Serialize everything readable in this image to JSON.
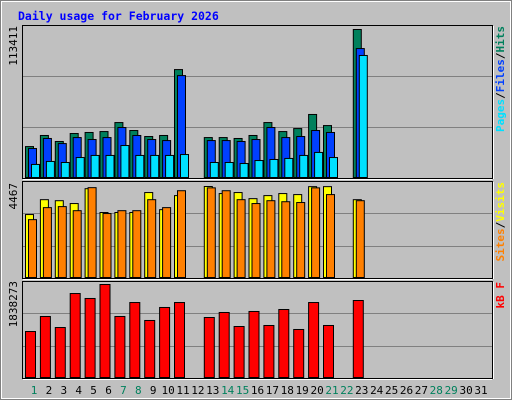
{
  "chart_data": {
    "type": "bar",
    "title": "Daily usage for February 2026",
    "categories": [
      "1",
      "2",
      "3",
      "4",
      "5",
      "6",
      "7",
      "8",
      "9",
      "10",
      "11",
      "12",
      "13",
      "14",
      "15",
      "16",
      "17",
      "18",
      "19",
      "20",
      "21",
      "22",
      "23",
      "24",
      "25",
      "26",
      "27",
      "28",
      "29",
      "30",
      "31"
    ],
    "category_colors": [
      "#00805c",
      "#000000",
      "#000000",
      "#000000",
      "#000000",
      "#000000",
      "#00805c",
      "#00805c",
      "#000000",
      "#000000",
      "#000000",
      "#000000",
      "#000000",
      "#00805c",
      "#00805c",
      "#000000",
      "#000000",
      "#000000",
      "#000000",
      "#000000",
      "#00805c",
      "#00805c",
      "#000000",
      "#000000",
      "#000000",
      "#000000",
      "#000000",
      "#00805c",
      "#00805c",
      "#000000",
      "#000000"
    ],
    "legend_separator": "/",
    "panels": [
      {
        "ylim": [
          0,
          113411
        ],
        "yticks": [
          113411
        ],
        "grid": true,
        "series": [
          {
            "name": "Hits",
            "color": "#00805c",
            "values": [
              23700,
              32200,
              27600,
              33700,
              34500,
              35200,
              42100,
              36000,
              31400,
              32200,
              82700,
              0,
              30600,
              30600,
              29900,
              32200,
              42100,
              35200,
              37500,
              48300,
              39800,
              0,
              113411,
              null,
              null,
              null,
              null,
              null,
              null,
              null,
              null
            ]
          },
          {
            "name": "Files",
            "color": "#0040ff",
            "values": [
              22200,
              29900,
              26000,
              30600,
              29100,
              30600,
              38300,
              32200,
              29100,
              28300,
              78100,
              0,
              28300,
              28300,
              27600,
              29100,
              38300,
              30600,
              31400,
              36000,
              34500,
              0,
              98800,
              null,
              null,
              null,
              null,
              null,
              null,
              null,
              null
            ]
          },
          {
            "name": "Pages",
            "color": "#00e0ff",
            "values": [
              10000,
              12300,
              11500,
              15300,
              16900,
              16900,
              24500,
              16900,
              16900,
              16900,
              17600,
              0,
              11500,
              11500,
              10700,
              13000,
              13800,
              14600,
              16900,
              19200,
              15300,
              0,
              93500,
              null,
              null,
              null,
              null,
              null,
              null,
              null,
              null
            ]
          }
        ]
      },
      {
        "ylim": [
          0,
          4467
        ],
        "yticks": [
          4467
        ],
        "grid": true,
        "series": [
          {
            "name": "Visits",
            "color": "#ffff00",
            "values": [
              3090,
              3820,
              3770,
              3630,
              4360,
              3190,
              3190,
              3190,
              4170,
              3330,
              4020,
              0,
              4467,
              4120,
              4170,
              3870,
              4020,
              4120,
              4070,
              4460,
              4460,
              0,
              3820,
              null,
              null,
              null,
              null,
              null,
              null,
              null,
              null
            ]
          },
          {
            "name": "Sites",
            "color": "#ff8000",
            "values": [
              2840,
              3430,
              3480,
              3280,
              4410,
              3140,
              3280,
              3280,
              3820,
              3430,
              4260,
              0,
              4400,
              4260,
              3820,
              3630,
              3770,
              3720,
              3680,
              4400,
              4070,
              0,
              3770,
              null,
              null,
              null,
              null,
              null,
              null,
              null,
              null
            ]
          }
        ]
      },
      {
        "ylim": [
          0,
          1838273
        ],
        "yticks": [
          1838273
        ],
        "grid": true,
        "series": [
          {
            "name": "kB F",
            "color": "#ff0000",
            "values": [
              909000,
              1206000,
              988000,
              1660000,
              1562000,
              1838273,
              1206000,
              1482000,
              1127000,
              1384000,
              1482000,
              0,
              1186000,
              1285000,
              1008000,
              1305000,
              1028000,
              1344000,
              949000,
              1482000,
              1028000,
              0,
              1522000,
              null,
              null,
              null,
              null,
              null,
              null,
              null,
              null
            ]
          }
        ]
      }
    ]
  }
}
